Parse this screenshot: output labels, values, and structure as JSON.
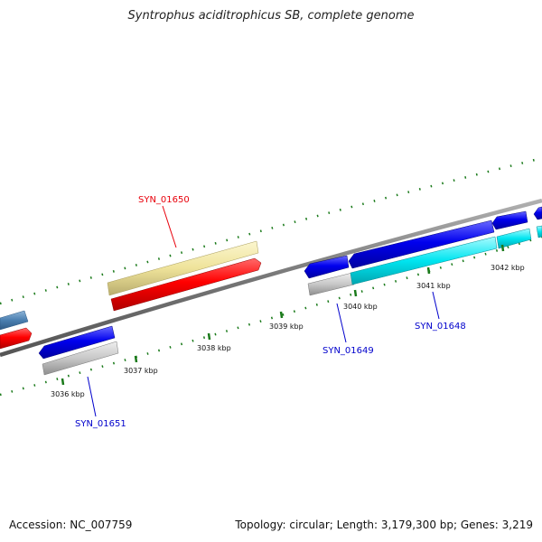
{
  "title": "Syntrophus aciditrophicus SB, complete genome",
  "footer": {
    "accession": "Accession: NC_007759",
    "stats": "Topology: circular; Length: 3,179,300 bp; Genes: 3,219"
  },
  "ticks": [
    "3036 kbp",
    "3037 kbp",
    "3038 kbp",
    "3039 kbp",
    "3040 kbp",
    "3041 kbp",
    "3042 kbp"
  ],
  "gene_labels": [
    {
      "name": "SYN_01650",
      "color": "#e8000b"
    },
    {
      "name": "SYN_01651",
      "color": "#0000cc"
    },
    {
      "name": "SYN_01649",
      "color": "#0000cc"
    },
    {
      "name": "SYN_01648",
      "color": "#0000cc"
    }
  ],
  "colors": {
    "backbone": "#808080",
    "tick_mark": "#1a7a1a",
    "cds_forward": "#ff0000",
    "cds_reverse": "#0000ee",
    "rna_yellow": "#f0e6a0",
    "cyan": "#00e5f0",
    "gray": "#c8c8c8",
    "steel_blue": "#4a7fb0"
  }
}
